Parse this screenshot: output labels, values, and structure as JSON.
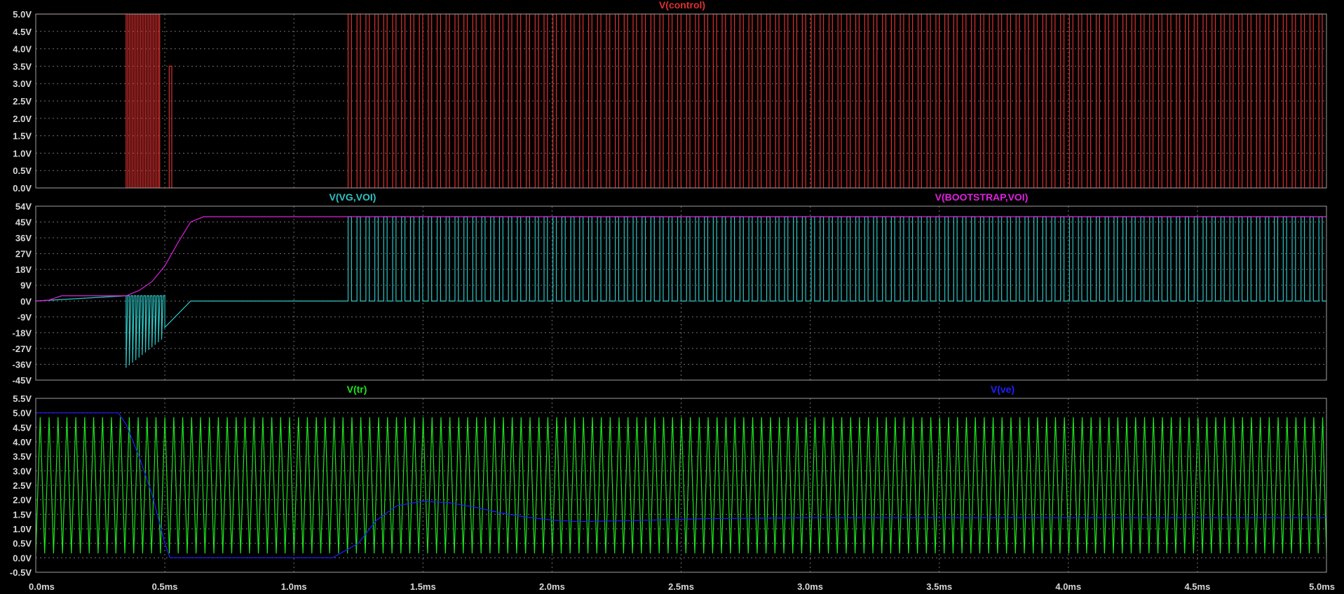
{
  "colors": {
    "background": "#000000",
    "frame": "#a0a0a0",
    "grid": "#707070",
    "tick_text": "#d8d8d8",
    "control": "#e03030",
    "vg_voi": "#2ec4c4",
    "bootstrap_voi": "#e020e0",
    "tr": "#1ee61e",
    "ve": "#2020ff"
  },
  "chart_data": [
    {
      "type": "line",
      "series": [
        {
          "name": "V(control)",
          "color": "#e03030",
          "segments": [
            {
              "t0": 0.0,
              "t1": 0.35,
              "mode": "const",
              "v": 5.0
            },
            {
              "t0": 0.35,
              "t1": 0.48,
              "mode": "pwm",
              "period": 0.0125,
              "duty": 0.5,
              "hi": 5.0,
              "lo": 0.0
            },
            {
              "t0": 0.48,
              "t1": 1.21,
              "mode": "const",
              "v": 0.0
            },
            {
              "t0": 1.21,
              "t1": 5.0,
              "mode": "pwm",
              "period": 0.0345,
              "duty": 0.38,
              "hi": 5.0,
              "lo": 0.0
            }
          ],
          "points": [
            [
              0.517,
              0.0
            ],
            [
              0.517,
              3.5
            ],
            [
              0.527,
              3.5
            ],
            [
              0.527,
              0.0
            ]
          ]
        }
      ],
      "xlim": [
        0,
        5
      ],
      "ylim": [
        0,
        5
      ],
      "yticks": [
        0.0,
        0.5,
        1.0,
        1.5,
        2.0,
        2.5,
        3.0,
        3.5,
        4.0,
        4.5,
        5.0
      ],
      "ytick_labels": [
        "0.0V",
        "0.5V",
        "1.0V",
        "1.5V",
        "2.0V",
        "2.5V",
        "3.0V",
        "3.5V",
        "4.0V",
        "4.5V",
        "5.0V"
      ],
      "grid": true
    },
    {
      "type": "line",
      "series": [
        {
          "name": "V(VG,VOI)",
          "color": "#2ec4c4",
          "segments": [
            {
              "t0": 0.0,
              "t1": 0.35,
              "mode": "ramp",
              "v0": 0.0,
              "v1": 3.0
            },
            {
              "t0": 0.35,
              "t1": 0.5,
              "mode": "spikes",
              "period": 0.0125,
              "hi": 3.0,
              "lo0": -38.0,
              "lo1": -22.0
            },
            {
              "t0": 0.5,
              "t1": 0.6,
              "mode": "ramp",
              "v0": -15.0,
              "v1": 0.0
            },
            {
              "t0": 0.6,
              "t1": 1.21,
              "mode": "const",
              "v": 0.0
            },
            {
              "t0": 1.21,
              "t1": 5.0,
              "mode": "pwm",
              "period": 0.0345,
              "duty": 0.38,
              "hi": 48.0,
              "lo": 0.0
            }
          ]
        },
        {
          "name": "V(BOOTSTRAP,VOI)",
          "color": "#e020e0",
          "points": [
            [
              0.0,
              0.0
            ],
            [
              0.05,
              0.5
            ],
            [
              0.1,
              3.0
            ],
            [
              0.35,
              3.0
            ],
            [
              0.4,
              6.0
            ],
            [
              0.45,
              11.0
            ],
            [
              0.5,
              20.0
            ],
            [
              0.55,
              33.0
            ],
            [
              0.6,
              45.0
            ],
            [
              0.65,
              48.0
            ],
            [
              5.0,
              48.0
            ]
          ]
        }
      ],
      "xlim": [
        0,
        5
      ],
      "ylim": [
        -45,
        54
      ],
      "yticks": [
        -45,
        -36,
        -27,
        -18,
        -9,
        0,
        9,
        18,
        27,
        36,
        45,
        54
      ],
      "ytick_labels": [
        "-45V",
        "-36V",
        "-27V",
        "-18V",
        "-9V",
        "0V",
        "9V",
        "18V",
        "27V",
        "36V",
        "45V",
        "54V"
      ],
      "grid": true
    },
    {
      "type": "line",
      "series": [
        {
          "name": "V(tr)",
          "color": "#1ee61e",
          "segments": [
            {
              "t0": 0.0,
              "t1": 5.0,
              "mode": "triangle",
              "period": 0.0345,
              "hi": 4.85,
              "lo": 0.15
            }
          ]
        },
        {
          "name": "V(ve)",
          "color": "#2020ff",
          "points": [
            [
              0.0,
              5.0
            ],
            [
              0.32,
              5.0
            ],
            [
              0.35,
              4.6
            ],
            [
              0.4,
              3.5
            ],
            [
              0.45,
              2.2
            ],
            [
              0.5,
              0.5
            ],
            [
              0.52,
              0.0
            ],
            [
              1.15,
              0.0
            ],
            [
              1.25,
              0.5
            ],
            [
              1.32,
              1.3
            ],
            [
              1.4,
              1.8
            ],
            [
              1.5,
              1.95
            ],
            [
              1.6,
              1.9
            ],
            [
              1.7,
              1.75
            ],
            [
              1.8,
              1.55
            ],
            [
              1.9,
              1.4
            ],
            [
              2.0,
              1.3
            ],
            [
              2.1,
              1.25
            ],
            [
              2.3,
              1.28
            ],
            [
              2.6,
              1.35
            ],
            [
              3.0,
              1.38
            ],
            [
              5.0,
              1.38
            ]
          ]
        }
      ],
      "xlim": [
        0,
        5
      ],
      "ylim": [
        -0.5,
        5.5
      ],
      "yticks": [
        -0.5,
        0.0,
        0.5,
        1.0,
        1.5,
        2.0,
        2.5,
        3.0,
        3.5,
        4.0,
        4.5,
        5.0,
        5.5
      ],
      "ytick_labels": [
        "-0.5V",
        "0.0V",
        "0.5V",
        "1.0V",
        "1.5V",
        "2.0V",
        "2.5V",
        "3.0V",
        "3.5V",
        "4.0V",
        "4.5V",
        "5.0V",
        "5.5V"
      ],
      "grid": true
    }
  ],
  "x_axis": {
    "xlim": [
      0,
      5
    ],
    "ticks": [
      0.0,
      0.5,
      1.0,
      1.5,
      2.0,
      2.5,
      3.0,
      3.5,
      4.0,
      4.5,
      5.0
    ],
    "tick_labels": [
      "0.0ms",
      "0.5ms",
      "1.0ms",
      "1.5ms",
      "2.0ms",
      "2.5ms",
      "3.0ms",
      "3.5ms",
      "4.0ms",
      "4.5ms",
      "5.0ms"
    ]
  }
}
